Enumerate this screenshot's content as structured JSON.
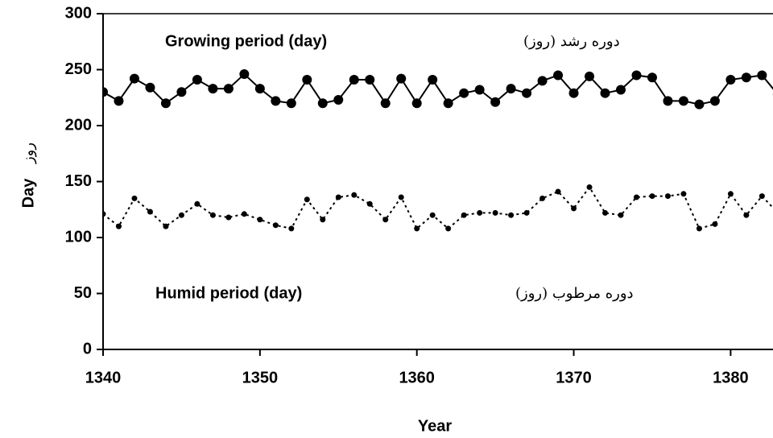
{
  "chart_data": {
    "type": "line",
    "x": [
      1340,
      1341,
      1342,
      1343,
      1344,
      1345,
      1346,
      1347,
      1348,
      1349,
      1350,
      1351,
      1352,
      1353,
      1354,
      1355,
      1356,
      1357,
      1358,
      1359,
      1360,
      1361,
      1362,
      1363,
      1364,
      1365,
      1366,
      1367,
      1368,
      1369,
      1370,
      1371,
      1372,
      1373,
      1374,
      1375,
      1376,
      1377,
      1378,
      1379,
      1380,
      1381,
      1382,
      1383
    ],
    "series": [
      {
        "color": "#000000",
        "style": "solid",
        "marker": "large",
        "values": [
          230,
          222,
          242,
          234,
          220,
          230,
          241,
          233,
          233,
          246,
          233,
          222,
          220,
          241,
          220,
          223,
          241,
          241,
          220,
          242,
          220,
          241,
          220,
          229,
          232,
          221,
          233,
          229,
          240,
          245,
          229,
          244,
          229,
          232,
          245,
          243,
          222,
          222,
          219,
          222,
          241,
          243,
          245,
          228
        ]
      },
      {
        "color": "#000000",
        "style": "dotted",
        "marker": "small",
        "values": [
          121,
          110,
          135,
          123,
          110,
          120,
          130,
          120,
          118,
          121,
          116,
          111,
          108,
          134,
          116,
          136,
          138,
          130,
          116,
          136,
          108,
          120,
          108,
          120,
          122,
          122,
          120,
          122,
          135,
          141,
          126,
          145,
          122,
          120,
          136,
          137,
          137,
          139,
          108,
          112,
          139,
          120,
          137,
          122
        ]
      }
    ],
    "annotations": [
      "Growing period (day)",
      "دوره رشد (روز)",
      "Humid period (day)",
      "دوره مرطوب (روز)"
    ],
    "x_label": "Year",
    "y_label": "Day",
    "y_label_secondary": "روز",
    "xlim": [
      1340,
      1382.7
    ],
    "xticks": [
      1340,
      1350,
      1360,
      1370,
      1380
    ],
    "ylim": [
      0,
      300
    ],
    "yticks": [
      0,
      50,
      100,
      150,
      200,
      250,
      300
    ]
  }
}
